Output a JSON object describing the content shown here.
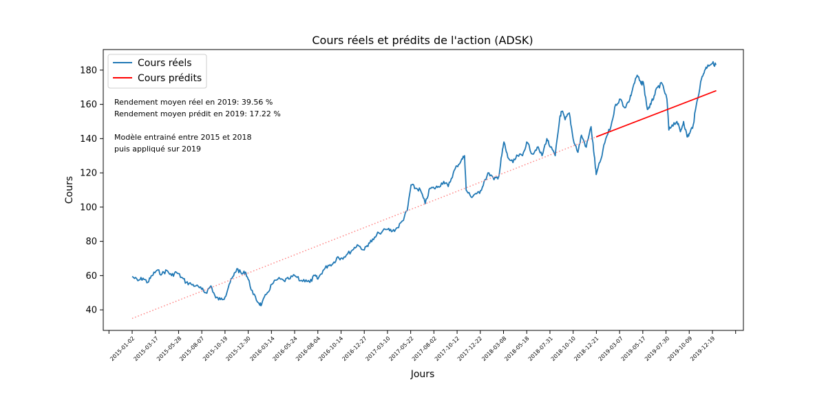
{
  "chart_data": {
    "type": "line",
    "title": "Cours réels et prédits de l'action (ADSK)",
    "xlabel": "Jours",
    "ylabel": "Cours",
    "ylim": [
      28,
      192
    ],
    "yticks": [
      40,
      60,
      80,
      100,
      120,
      140,
      160,
      180
    ],
    "xticks": [
      "2015-01-02",
      "2015-03-17",
      "2015-05-28",
      "2015-08-07",
      "2015-10-19",
      "2015-12-30",
      "2016-03-14",
      "2016-05-24",
      "2016-08-04",
      "2016-10-14",
      "2016-12-27",
      "2017-03-10",
      "2017-05-22",
      "2017-08-02",
      "2017-10-12",
      "2017-12-22",
      "2018-03-08",
      "2018-05-18",
      "2018-07-31",
      "2018-10-10",
      "2018-12-21",
      "2019-03-07",
      "2019-05-17",
      "2019-07-30",
      "2019-10-09",
      "2019-12-19"
    ],
    "legend_position": "top-left",
    "grid": false,
    "series": [
      {
        "name": "Cours réels",
        "color": "#1f77b4",
        "style": "solid",
        "points": [
          [
            "2015-01-02",
            59.5
          ],
          [
            "2015-01-20",
            57
          ],
          [
            "2015-02-05",
            58.5
          ],
          [
            "2015-02-20",
            56
          ],
          [
            "2015-03-05",
            60
          ],
          [
            "2015-03-20",
            63
          ],
          [
            "2015-04-05",
            61
          ],
          [
            "2015-04-20",
            63
          ],
          [
            "2015-05-05",
            60
          ],
          [
            "2015-05-20",
            62
          ],
          [
            "2015-06-05",
            59
          ],
          [
            "2015-06-20",
            56
          ],
          [
            "2015-07-05",
            55
          ],
          [
            "2015-07-20",
            54
          ],
          [
            "2015-08-07",
            52
          ],
          [
            "2015-08-20",
            50
          ],
          [
            "2015-09-05",
            54
          ],
          [
            "2015-09-20",
            47
          ],
          [
            "2015-10-05",
            46
          ],
          [
            "2015-10-19",
            47.5
          ],
          [
            "2015-11-01",
            55
          ],
          [
            "2015-11-15",
            60
          ],
          [
            "2015-11-25",
            64
          ],
          [
            "2015-12-10",
            61
          ],
          [
            "2015-12-22",
            62
          ],
          [
            "2015-12-30",
            58
          ],
          [
            "2016-01-15",
            49
          ],
          [
            "2016-02-01",
            44
          ],
          [
            "2016-02-10",
            43
          ],
          [
            "2016-02-25",
            49
          ],
          [
            "2016-03-14",
            55
          ],
          [
            "2016-04-01",
            58
          ],
          [
            "2016-04-20",
            57
          ],
          [
            "2016-05-05",
            58
          ],
          [
            "2016-05-24",
            60
          ],
          [
            "2016-06-10",
            57
          ],
          [
            "2016-06-28",
            57.5
          ],
          [
            "2016-07-10",
            56
          ],
          [
            "2016-07-25",
            60
          ],
          [
            "2016-08-04",
            58
          ],
          [
            "2016-08-20",
            63
          ],
          [
            "2016-09-05",
            66
          ],
          [
            "2016-09-20",
            67
          ],
          [
            "2016-10-05",
            71
          ],
          [
            "2016-10-14",
            70
          ],
          [
            "2016-11-01",
            72
          ],
          [
            "2016-11-20",
            75
          ],
          [
            "2016-12-05",
            78
          ],
          [
            "2016-12-27",
            75
          ],
          [
            "2017-01-10",
            79
          ],
          [
            "2017-01-25",
            81
          ],
          [
            "2017-02-10",
            85
          ],
          [
            "2017-03-10",
            87
          ],
          [
            "2017-03-25",
            86
          ],
          [
            "2017-04-10",
            88
          ],
          [
            "2017-04-25",
            92
          ],
          [
            "2017-05-10",
            98
          ],
          [
            "2017-05-22",
            113
          ],
          [
            "2017-06-05",
            111
          ],
          [
            "2017-06-20",
            110
          ],
          [
            "2017-07-05",
            102
          ],
          [
            "2017-07-20",
            111
          ],
          [
            "2017-08-02",
            111
          ],
          [
            "2017-08-15",
            112
          ],
          [
            "2017-09-01",
            115
          ],
          [
            "2017-09-15",
            112
          ],
          [
            "2017-10-01",
            120
          ],
          [
            "2017-10-12",
            124
          ],
          [
            "2017-10-25",
            127
          ],
          [
            "2017-11-05",
            130
          ],
          [
            "2017-11-10",
            110
          ],
          [
            "2017-11-25",
            106
          ],
          [
            "2017-12-10",
            108
          ],
          [
            "2017-12-22",
            108
          ],
          [
            "2018-01-05",
            115
          ],
          [
            "2018-01-20",
            120
          ],
          [
            "2018-02-05",
            116
          ],
          [
            "2018-02-20",
            118
          ],
          [
            "2018-03-01",
            130
          ],
          [
            "2018-03-08",
            138
          ],
          [
            "2018-03-20",
            129
          ],
          [
            "2018-04-05",
            126
          ],
          [
            "2018-04-20",
            130
          ],
          [
            "2018-05-05",
            130
          ],
          [
            "2018-05-18",
            138
          ],
          [
            "2018-06-05",
            131
          ],
          [
            "2018-06-20",
            135
          ],
          [
            "2018-07-05",
            130
          ],
          [
            "2018-07-20",
            140
          ],
          [
            "2018-07-31",
            135
          ],
          [
            "2018-08-15",
            130
          ],
          [
            "2018-08-30",
            153
          ],
          [
            "2018-09-05",
            156
          ],
          [
            "2018-09-15",
            151
          ],
          [
            "2018-09-28",
            155
          ],
          [
            "2018-10-10",
            140
          ],
          [
            "2018-10-25",
            132
          ],
          [
            "2018-11-05",
            142
          ],
          [
            "2018-11-20",
            135
          ],
          [
            "2018-12-05",
            147
          ],
          [
            "2018-12-15",
            130
          ],
          [
            "2018-12-21",
            119
          ],
          [
            "2019-01-05",
            128
          ],
          [
            "2019-01-20",
            140
          ],
          [
            "2019-02-05",
            147
          ],
          [
            "2019-02-20",
            160
          ],
          [
            "2019-03-07",
            163
          ],
          [
            "2019-03-20",
            158
          ],
          [
            "2019-04-05",
            163
          ],
          [
            "2019-04-15",
            170
          ],
          [
            "2019-04-28",
            177
          ],
          [
            "2019-05-10",
            172
          ],
          [
            "2019-05-17",
            173
          ],
          [
            "2019-05-30",
            157
          ],
          [
            "2019-06-10",
            160
          ],
          [
            "2019-06-20",
            165
          ],
          [
            "2019-07-01",
            170
          ],
          [
            "2019-07-15",
            172
          ],
          [
            "2019-07-30",
            163
          ],
          [
            "2019-08-05",
            145
          ],
          [
            "2019-08-15",
            148
          ],
          [
            "2019-08-30",
            150
          ],
          [
            "2019-09-10",
            144
          ],
          [
            "2019-09-20",
            150
          ],
          [
            "2019-10-01",
            141
          ],
          [
            "2019-10-09",
            143
          ],
          [
            "2019-10-20",
            148
          ],
          [
            "2019-11-01",
            162
          ],
          [
            "2019-11-15",
            175
          ],
          [
            "2019-11-25",
            180
          ],
          [
            "2019-12-05",
            183
          ],
          [
            "2019-12-19",
            184
          ],
          [
            "2019-12-30",
            183
          ]
        ]
      },
      {
        "name": "Cours prédits",
        "color": "#ff0000",
        "style": "solid",
        "points": [
          [
            "2018-12-21",
            141
          ],
          [
            "2019-12-31",
            168
          ]
        ]
      },
      {
        "name": "",
        "color": "#ff8080",
        "style": "dotted",
        "points": [
          [
            "2015-01-02",
            35
          ],
          [
            "2018-12-21",
            141
          ]
        ]
      }
    ],
    "annotations": [
      "Rendement moyen réel en 2019: 39.56 %",
      "Rendement moyen prédit en 2019: 17.22 %",
      "",
      "Modèle entrainé entre 2015 et 2018",
      "puis appliqué sur 2019"
    ]
  }
}
